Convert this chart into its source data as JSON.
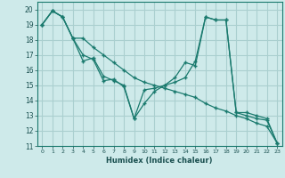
{
  "xlabel": "Humidex (Indice chaleur)",
  "ylabel": "",
  "background_color": "#ceeaea",
  "grid_color": "#aacfcf",
  "line_color": "#1a7a6e",
  "xlim": [
    -0.5,
    23.5
  ],
  "ylim": [
    11,
    20.5
  ],
  "yticks": [
    11,
    12,
    13,
    14,
    15,
    16,
    17,
    18,
    19,
    20
  ],
  "xticks": [
    0,
    1,
    2,
    3,
    4,
    5,
    6,
    7,
    8,
    9,
    10,
    11,
    12,
    13,
    14,
    15,
    16,
    17,
    18,
    19,
    20,
    21,
    22,
    23
  ],
  "series": [
    [
      19.0,
      19.9,
      19.5,
      18.1,
      16.6,
      16.8,
      15.6,
      15.3,
      15.0,
      12.8,
      13.8,
      14.6,
      15.0,
      15.2,
      15.5,
      16.6,
      19.5,
      19.3,
      19.3,
      13.2,
      13.0,
      12.8,
      12.7,
      11.2
    ],
    [
      19.0,
      19.9,
      19.5,
      18.1,
      17.0,
      16.7,
      15.3,
      15.4,
      14.9,
      12.8,
      14.7,
      14.8,
      15.0,
      15.5,
      16.5,
      16.3,
      19.5,
      19.3,
      19.3,
      13.2,
      13.2,
      13.0,
      12.8,
      11.2
    ],
    [
      19.0,
      19.9,
      19.5,
      18.1,
      18.1,
      17.5,
      17.0,
      16.5,
      16.0,
      15.5,
      15.2,
      15.0,
      14.8,
      14.6,
      14.4,
      14.2,
      13.8,
      13.5,
      13.3,
      13.0,
      12.8,
      12.5,
      12.3,
      11.2
    ]
  ]
}
